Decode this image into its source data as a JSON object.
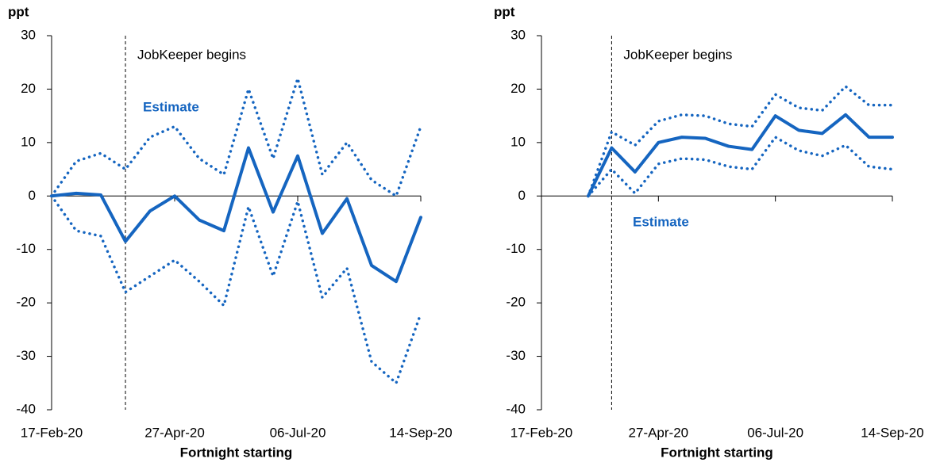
{
  "chart_data": [
    {
      "type": "line",
      "y_label": "ppt",
      "x_label": "Fortnight starting",
      "annotation": "JobKeeper begins",
      "categories": [
        "17-Feb-20",
        null,
        null,
        null,
        null,
        "27-Apr-20",
        null,
        null,
        null,
        null,
        "06-Jul-20",
        null,
        null,
        null,
        null,
        "14-Sep-20"
      ],
      "series": [
        {
          "name": "Estimate",
          "color": "#1565c0",
          "style": "solid",
          "values": [
            0,
            0.5,
            0.2,
            -8.5,
            -2.8,
            0,
            -4.5,
            -6.5,
            9,
            -3,
            7.5,
            -7,
            -0.5,
            -13,
            -16,
            -4
          ]
        },
        {
          "color": "#1565c0",
          "style": "dotted",
          "values": [
            0,
            6.5,
            8,
            5,
            11,
            13,
            7,
            4,
            20,
            7,
            22,
            4,
            10,
            3,
            0,
            13
          ]
        },
        {
          "color": "#1565c0",
          "style": "dotted",
          "values": [
            0,
            -6.5,
            -7.5,
            -18,
            -15,
            -12,
            -16,
            -20.5,
            -2,
            -15,
            -1,
            -19,
            -13.5,
            -31,
            -35,
            -22
          ]
        }
      ],
      "ylim": [
        -40,
        30
      ],
      "yticks": [
        -40,
        -30,
        -20,
        -10,
        0,
        10,
        20,
        30
      ],
      "grid": false
    },
    {
      "type": "line",
      "y_label": "ppt",
      "x_label": "Fortnight starting",
      "annotation": "JobKeeper begins",
      "categories": [
        "17-Feb-20",
        null,
        null,
        null,
        null,
        "27-Apr-20",
        null,
        null,
        null,
        null,
        "06-Jul-20",
        null,
        null,
        null,
        null,
        "14-Sep-20"
      ],
      "series": [
        {
          "name": "Estimate",
          "color": "#1565c0",
          "style": "solid",
          "values": [
            null,
            null,
            0,
            9,
            4.5,
            10,
            11,
            10.8,
            9.3,
            8.7,
            15,
            12.3,
            11.7,
            15.2,
            11,
            11
          ]
        },
        {
          "color": "#1565c0",
          "style": "dotted",
          "values": [
            null,
            null,
            0,
            12,
            9.5,
            14,
            15.2,
            15,
            13.5,
            13,
            19,
            16.5,
            16,
            20.5,
            17,
            17
          ]
        },
        {
          "color": "#1565c0",
          "style": "dotted",
          "values": [
            null,
            null,
            0,
            5,
            0.5,
            6,
            7,
            6.8,
            5.5,
            5,
            11,
            8.5,
            7.5,
            9.5,
            5.5,
            5
          ]
        }
      ],
      "ylim": [
        -40,
        30
      ],
      "yticks": [
        -40,
        -30,
        -20,
        -10,
        0,
        10,
        20,
        30
      ],
      "grid": false
    }
  ]
}
